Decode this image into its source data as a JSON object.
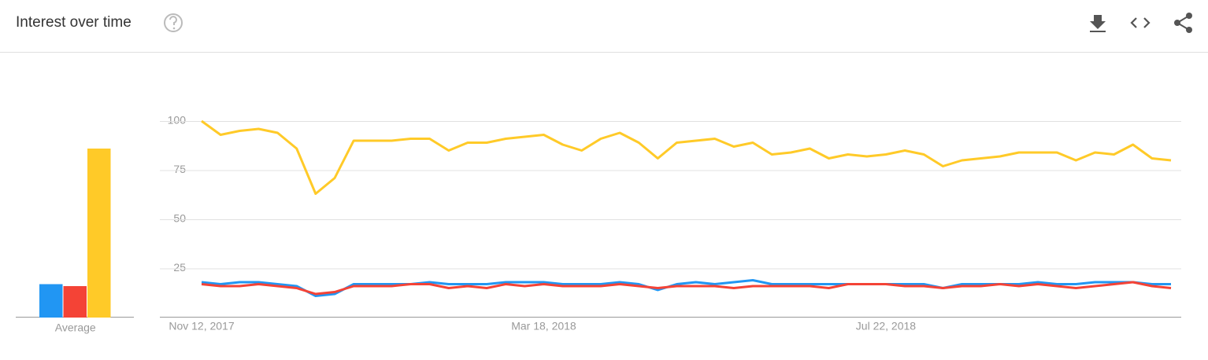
{
  "header": {
    "title": "Interest over time"
  },
  "chart_data": [
    {
      "type": "bar",
      "categories": [
        "Average"
      ],
      "ylim": [
        0,
        100
      ],
      "series": [
        {
          "color": "#2196f3",
          "values": [
            17
          ]
        },
        {
          "color": "#f44336",
          "values": [
            16
          ]
        },
        {
          "color": "#ffca28",
          "values": [
            86
          ]
        }
      ]
    },
    {
      "type": "line",
      "categories": [
        "Nov 12, 2017",
        null,
        null,
        null,
        null,
        null,
        null,
        null,
        null,
        null,
        null,
        null,
        null,
        null,
        null,
        null,
        null,
        null,
        "Mar 18, 2018",
        null,
        null,
        null,
        null,
        null,
        null,
        null,
        null,
        null,
        null,
        null,
        null,
        null,
        null,
        null,
        null,
        null,
        "Jul 22, 2018",
        null,
        null,
        null,
        null,
        null,
        null,
        null,
        null,
        null,
        null,
        null,
        null,
        null,
        null,
        null
      ],
      "ylim": [
        0,
        100
      ],
      "yticks": [
        25,
        50,
        75,
        100
      ],
      "grid": true,
      "series": [
        {
          "color": "#2196f3",
          "values": [
            18,
            17,
            18,
            18,
            17,
            16,
            11,
            12,
            17,
            17,
            17,
            17,
            18,
            17,
            17,
            17,
            18,
            18,
            18,
            17,
            17,
            17,
            18,
            17,
            14,
            17,
            18,
            17,
            18,
            19,
            17,
            17,
            17,
            17,
            17,
            17,
            17,
            17,
            17,
            15,
            17,
            17,
            17,
            17,
            18,
            17,
            17,
            18,
            18,
            18,
            17,
            17
          ]
        },
        {
          "color": "#f44336",
          "values": [
            17,
            16,
            16,
            17,
            16,
            15,
            12,
            13,
            16,
            16,
            16,
            17,
            17,
            15,
            16,
            15,
            17,
            16,
            17,
            16,
            16,
            16,
            17,
            16,
            15,
            16,
            16,
            16,
            15,
            16,
            16,
            16,
            16,
            15,
            17,
            17,
            17,
            16,
            16,
            15,
            16,
            16,
            17,
            16,
            17,
            16,
            15,
            16,
            17,
            18,
            16,
            15
          ]
        },
        {
          "color": "#ffca28",
          "values": [
            100,
            93,
            95,
            96,
            94,
            86,
            63,
            71,
            90,
            90,
            90,
            91,
            91,
            85,
            89,
            89,
            91,
            92,
            93,
            88,
            85,
            91,
            94,
            89,
            81,
            89,
            90,
            91,
            87,
            89,
            83,
            84,
            86,
            81,
            83,
            82,
            83,
            85,
            83,
            77,
            80,
            81,
            82,
            84,
            84,
            84,
            80,
            84,
            83,
            88,
            81,
            80
          ]
        }
      ]
    }
  ]
}
